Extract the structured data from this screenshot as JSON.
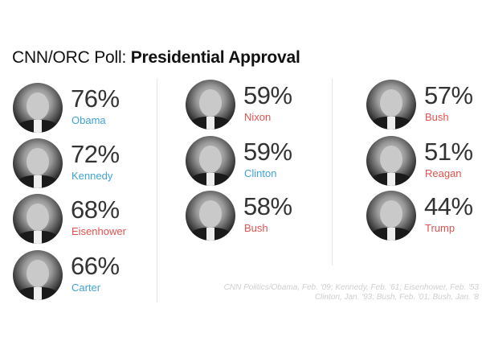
{
  "title": {
    "prefix": "CNN/ORC Poll: ",
    "bold": "Presidential Approval"
  },
  "colors": {
    "democrat": "#3fa3d6",
    "republican": "#e0524f"
  },
  "chart_data": {
    "type": "table",
    "columns": [
      "President",
      "Approval"
    ],
    "rows": [
      {
        "name": "Obama",
        "value": "76%",
        "approval": 76,
        "party_color": "#3fa3d6"
      },
      {
        "name": "Kennedy",
        "value": "72%",
        "approval": 72,
        "party_color": "#3fa3d6"
      },
      {
        "name": "Eisenhower",
        "value": "68%",
        "approval": 68,
        "party_color": "#e0524f"
      },
      {
        "name": "Carter",
        "value": "66%",
        "approval": 66,
        "party_color": "#3fa3d6"
      },
      {
        "name": "Nixon",
        "value": "59%",
        "approval": 59,
        "party_color": "#e0524f"
      },
      {
        "name": "Clinton",
        "value": "59%",
        "approval": 59,
        "party_color": "#3fa3d6"
      },
      {
        "name": "Bush",
        "value": "58%",
        "approval": 58,
        "party_color": "#e0524f"
      },
      {
        "name": "Bush",
        "value": "57%",
        "approval": 57,
        "party_color": "#e0524f"
      },
      {
        "name": "Reagan",
        "value": "51%",
        "approval": 51,
        "party_color": "#e0524f"
      },
      {
        "name": "Trump",
        "value": "44%",
        "approval": 44,
        "party_color": "#e0524f"
      }
    ]
  },
  "source": {
    "line1": "CNN Politics/Obama, Feb. '09; Kennedy, Feb. '61; Eisenhower, Feb. '53",
    "line2": "Clinton, Jan. '93; Bush, Feb. '01; Bush, Jan. '8"
  }
}
